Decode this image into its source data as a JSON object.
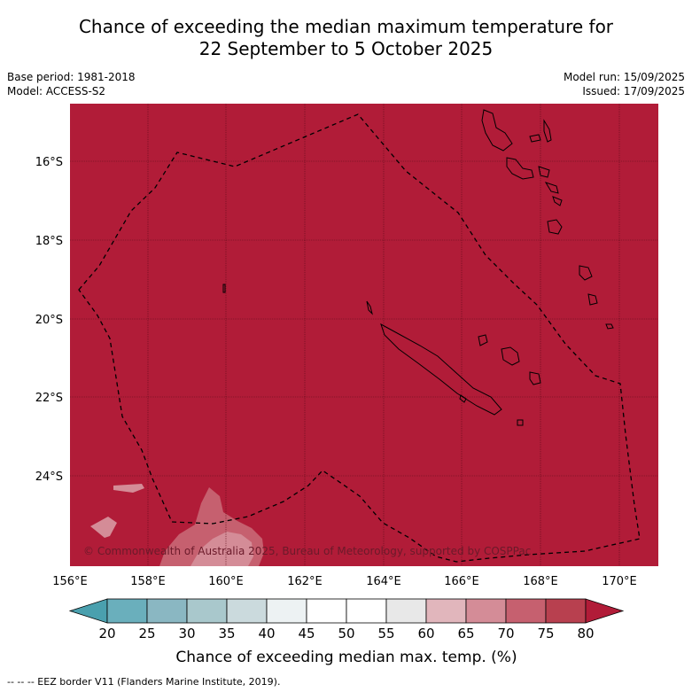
{
  "title": {
    "line1": "Chance of exceeding the median maximum temperature for",
    "line2": "22 September to 5 October 2025"
  },
  "meta_left": {
    "base_period": "Base period: 1981-2018",
    "model": "Model: ACCESS-S2"
  },
  "meta_right": {
    "model_run": "Model run: 15/09/2025",
    "issued": "Issued: 17/09/2025"
  },
  "map": {
    "lon_labels": [
      "156°E",
      "158°E",
      "160°E",
      "162°E",
      "164°E",
      "166°E",
      "168°E",
      "170°E"
    ],
    "lat_labels": [
      "16°S",
      "18°S",
      "20°S",
      "22°S",
      "24°S"
    ],
    "base_color": "#b11c38",
    "copyright": "© Commonwealth of Australia 2025, Bureau of Meteorology, supported by COSPPac"
  },
  "colorbar": {
    "labels": [
      "20",
      "25",
      "30",
      "35",
      "40",
      "45",
      "50",
      "55",
      "60",
      "65",
      "70",
      "75",
      "80"
    ],
    "colors": [
      "#4aa0ae",
      "#6aafbc",
      "#8ab7c2",
      "#a9c8cc",
      "#cbdadd",
      "#edf2f3",
      "#ffffff",
      "#ffffff",
      "#e8e8e8",
      "#e1b6bc",
      "#d48c97",
      "#c6606f",
      "#b8404f",
      "#b11c38"
    ],
    "title": "Chance of exceeding median max. temp. (%)"
  },
  "footer": "--  --  -- EEZ border V11 (Flanders Marine Institute, 2019)."
}
